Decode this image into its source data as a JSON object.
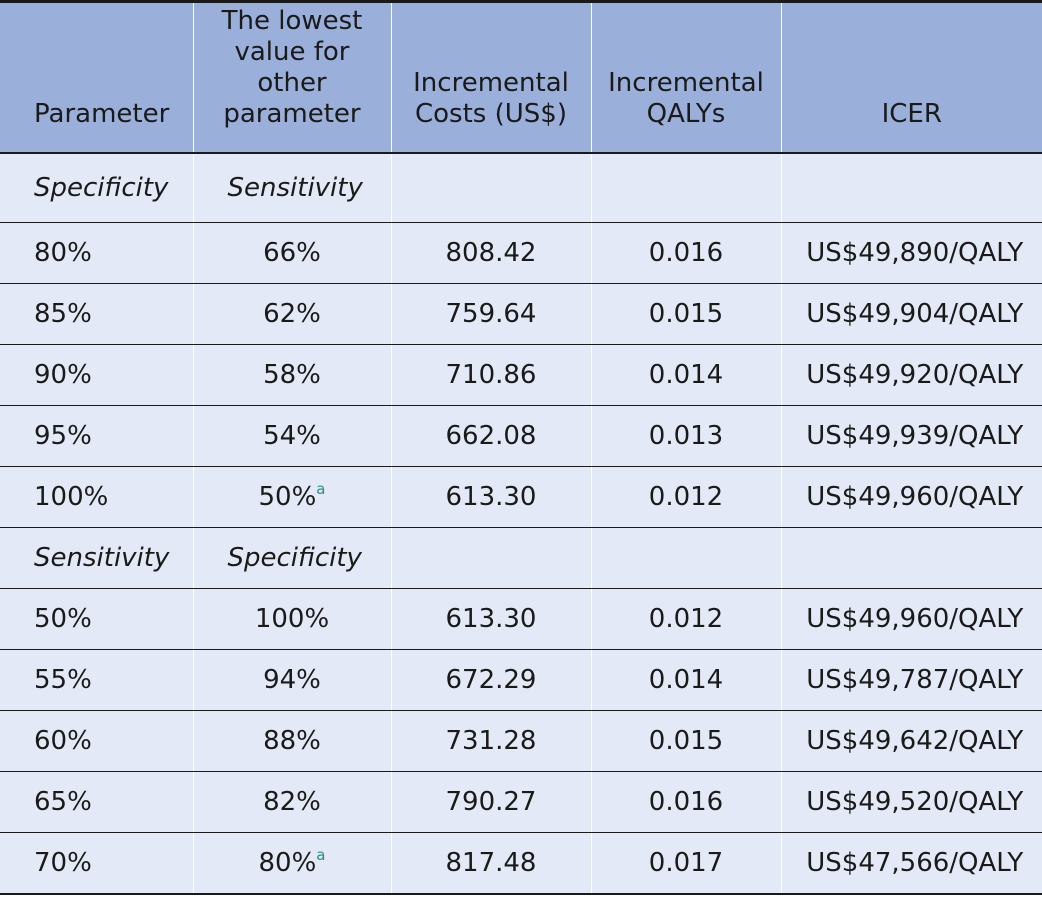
{
  "headers": {
    "parameter": "Parameter",
    "lowest_value": "The lowest value for other parameter",
    "incremental_costs": "Incremental Costs (US$)",
    "incremental_qalys": "Incremental QALYs",
    "icer": "ICER"
  },
  "section1": {
    "parameter": "Specificity",
    "other": "Sensitivity",
    "rows": [
      {
        "param": "80%",
        "lowest": "66%",
        "note": "",
        "costs": "808.42",
        "qalys": "0.016",
        "icer": "US$49,890/QALY"
      },
      {
        "param": "85%",
        "lowest": "62%",
        "note": "",
        "costs": "759.64",
        "qalys": "0.015",
        "icer": "US$49,904/QALY"
      },
      {
        "param": "90%",
        "lowest": "58%",
        "note": "",
        "costs": "710.86",
        "qalys": "0.014",
        "icer": "US$49,920/QALY"
      },
      {
        "param": "95%",
        "lowest": "54%",
        "note": "",
        "costs": "662.08",
        "qalys": "0.013",
        "icer": "US$49,939/QALY"
      },
      {
        "param": "100%",
        "lowest": "50%",
        "note": "a",
        "costs": "613.30",
        "qalys": "0.012",
        "icer": "US$49,960/QALY"
      }
    ]
  },
  "section2": {
    "parameter": "Sensitivity",
    "other": "Specificity",
    "rows": [
      {
        "param": "50%",
        "lowest": "100%",
        "note": "",
        "costs": "613.30",
        "qalys": "0.012",
        "icer": "US$49,960/QALY"
      },
      {
        "param": "55%",
        "lowest": "94%",
        "note": "",
        "costs": "672.29",
        "qalys": "0.014",
        "icer": "US$49,787/QALY"
      },
      {
        "param": "60%",
        "lowest": "88%",
        "note": "",
        "costs": "731.28",
        "qalys": "0.015",
        "icer": "US$49,642/QALY"
      },
      {
        "param": "65%",
        "lowest": "82%",
        "note": "",
        "costs": "790.27",
        "qalys": "0.016",
        "icer": "US$49,520/QALY"
      },
      {
        "param": "70%",
        "lowest": "80%",
        "note": "a",
        "costs": "817.48",
        "qalys": "0.017",
        "icer": "US$47,566/QALY"
      }
    ]
  }
}
